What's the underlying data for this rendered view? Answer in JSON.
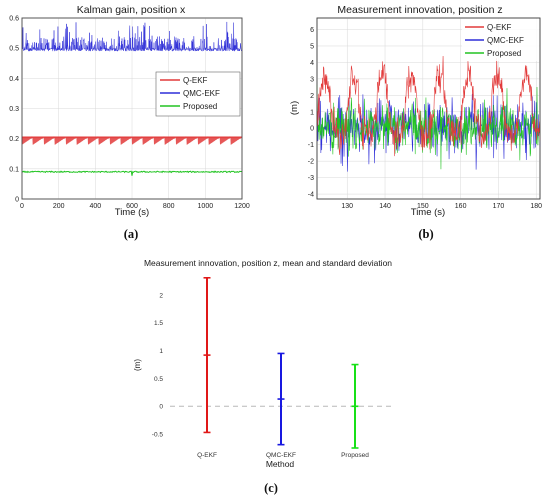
{
  "chart_data": [
    {
      "type": "line",
      "title": "Kalman gain, position x",
      "xlabel": "Time (s)",
      "ylabel": "",
      "xlim": [
        0,
        1200
      ],
      "ylim": [
        0,
        0.6
      ],
      "xticks": [
        0,
        200,
        400,
        600,
        800,
        1000,
        1200
      ],
      "yticks": [
        0,
        0.1,
        0.2,
        0.3,
        0.4,
        0.5,
        0.6
      ],
      "grid": true,
      "legend_position": "center-right",
      "series": [
        {
          "name": "Q-EKF",
          "color": "#e23a3a",
          "mean": 0.195,
          "band": [
            0.18,
            0.205
          ]
        },
        {
          "name": "QMC-EKF",
          "color": "#2f2fd8",
          "mean": 0.495,
          "band": [
            0.485,
            0.585
          ]
        },
        {
          "name": "Proposed",
          "color": "#22c422",
          "mean": 0.09,
          "band": [
            0.085,
            0.095
          ]
        }
      ],
      "caption": "(a)"
    },
    {
      "type": "line",
      "title": "Measurement innovation, position z",
      "xlabel": "Time (s)",
      "ylabel": "(m)",
      "xlim": [
        122,
        181
      ],
      "ylim": [
        -4.3,
        6.7
      ],
      "xticks": [
        130,
        140,
        150,
        160,
        170,
        180
      ],
      "yticks": [
        -4,
        -3,
        -2,
        -1,
        0,
        1,
        2,
        3,
        4,
        5,
        6
      ],
      "grid": true,
      "legend_position": "top-right",
      "series": [
        {
          "name": "Q-EKF",
          "color": "#e23a3a",
          "mean": 0.9,
          "std": 1.4
        },
        {
          "name": "QMC-EKF",
          "color": "#2f2fd8",
          "mean": 0.13,
          "std": 0.82
        },
        {
          "name": "Proposed",
          "color": "#22c422",
          "mean": 0.0,
          "std": 0.75
        }
      ],
      "caption": "(b)"
    },
    {
      "type": "errorbar",
      "title": "Measurement innovation, position z, mean and standard deviation",
      "xlabel": "Method",
      "ylabel": "(m)",
      "ylim": [
        -0.75,
        2.45
      ],
      "yticks": [
        -0.5,
        0,
        0.5,
        1,
        1.5,
        2
      ],
      "categories": [
        "Q-EKF",
        "QMC-EKF",
        "Proposed"
      ],
      "colors": [
        "#e01818",
        "#1818e0",
        "#18e018"
      ],
      "mean": [
        0.92,
        0.13,
        0.0
      ],
      "std": [
        1.39,
        0.82,
        0.75
      ],
      "reference_line": 0,
      "caption": "(c)"
    }
  ]
}
